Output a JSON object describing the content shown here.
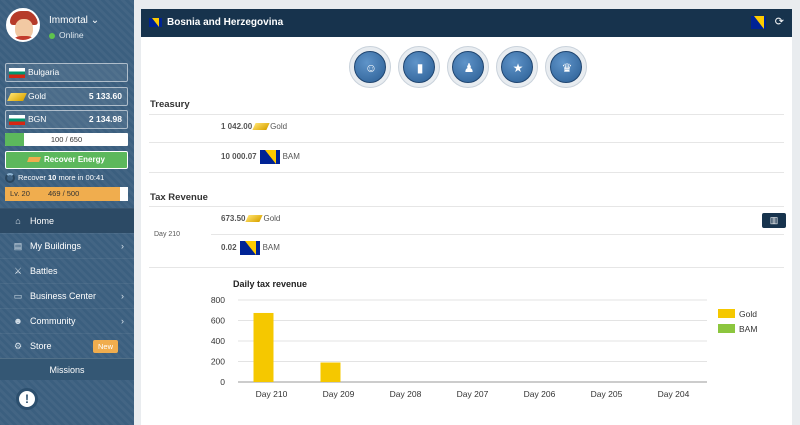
{
  "user": {
    "name": "Immortal",
    "status": "Online"
  },
  "sidebar": {
    "country": "Bulgaria",
    "gold_label": "Gold",
    "gold_amount": "5 133.60",
    "currency_label": "BGN",
    "currency_amount": "2 134.98",
    "energy_text": "100 / 650",
    "energy_fraction": 0.154,
    "recover_label": "Recover Energy",
    "recover_prefix": "Recover ",
    "recover_amount": "10",
    "recover_suffix": " more in 00:41",
    "level": "Lv. 20",
    "xp": "469 / 500",
    "xp_fraction": 0.938,
    "nav": [
      {
        "label": "Home",
        "icon": "home-icon"
      },
      {
        "label": "My Buildings",
        "icon": "building-icon"
      },
      {
        "label": "Battles",
        "icon": "swords-icon"
      },
      {
        "label": "Business Center",
        "icon": "cart-icon"
      },
      {
        "label": "Community",
        "icon": "users-icon"
      },
      {
        "label": "Store",
        "icon": "gear-icon",
        "badge": "New"
      }
    ],
    "missions": "Missions"
  },
  "header": {
    "title": "Bosnia and Herzegovina"
  },
  "treasury": {
    "title": "Treasury",
    "gold_amount": "1 042.00",
    "gold_label": "Gold",
    "bam_amount": "10 000.07",
    "bam_label": "BAM"
  },
  "tax": {
    "title": "Tax Revenue",
    "day": "Day 210",
    "gold_amount": "673.50",
    "gold_label": "Gold",
    "bam_amount": "0.02",
    "bam_label": "BAM"
  },
  "colors": {
    "gold": "#f5c800",
    "bam": "#8cc63e",
    "header": "#17334d",
    "sidebar": "#3b5f7f"
  },
  "chart_data": {
    "type": "bar",
    "title": "Daily tax revenue",
    "categories": [
      "Day 210",
      "Day 209",
      "Day 208",
      "Day 207",
      "Day 206",
      "Day 205",
      "Day 204"
    ],
    "series": [
      {
        "name": "Gold",
        "values": [
          673.5,
          190,
          0,
          0,
          0,
          0,
          0
        ]
      },
      {
        "name": "BAM",
        "values": [
          0.02,
          0,
          0,
          0,
          0,
          0,
          0
        ]
      }
    ],
    "yticks": [
      0,
      200,
      400,
      600,
      800
    ],
    "ylim": [
      0,
      800
    ],
    "grid": true,
    "legend": "top-right"
  }
}
